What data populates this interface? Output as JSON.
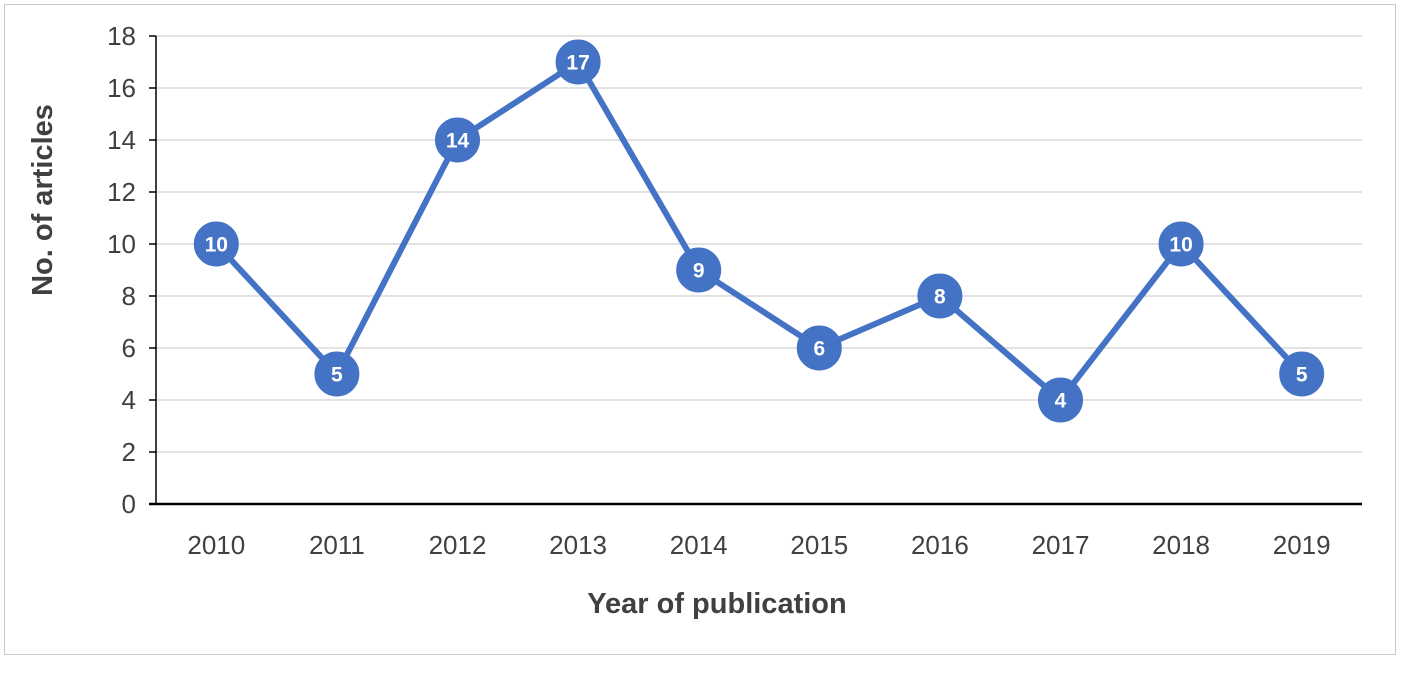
{
  "chart_data": {
    "type": "line",
    "title": "",
    "xlabel": "Year of publication",
    "ylabel": "No. of articles",
    "categories": [
      "2010",
      "2011",
      "2012",
      "2013",
      "2014",
      "2015",
      "2016",
      "2017",
      "2018",
      "2019"
    ],
    "series": [
      {
        "values": [
          10,
          5,
          14,
          17,
          9,
          6,
          8,
          4,
          10,
          5
        ]
      }
    ],
    "ylim": [
      0,
      18
    ],
    "yticks": [
      0,
      2,
      4,
      6,
      8,
      10,
      12,
      14,
      16,
      18
    ],
    "grid": "horizontal",
    "legend": "none",
    "data_labels": true,
    "colors": {
      "series": "#4472c4",
      "grid": "#d9d9d9",
      "axis": "#000000",
      "text": "#404040",
      "label_text": "#ffffff"
    }
  }
}
